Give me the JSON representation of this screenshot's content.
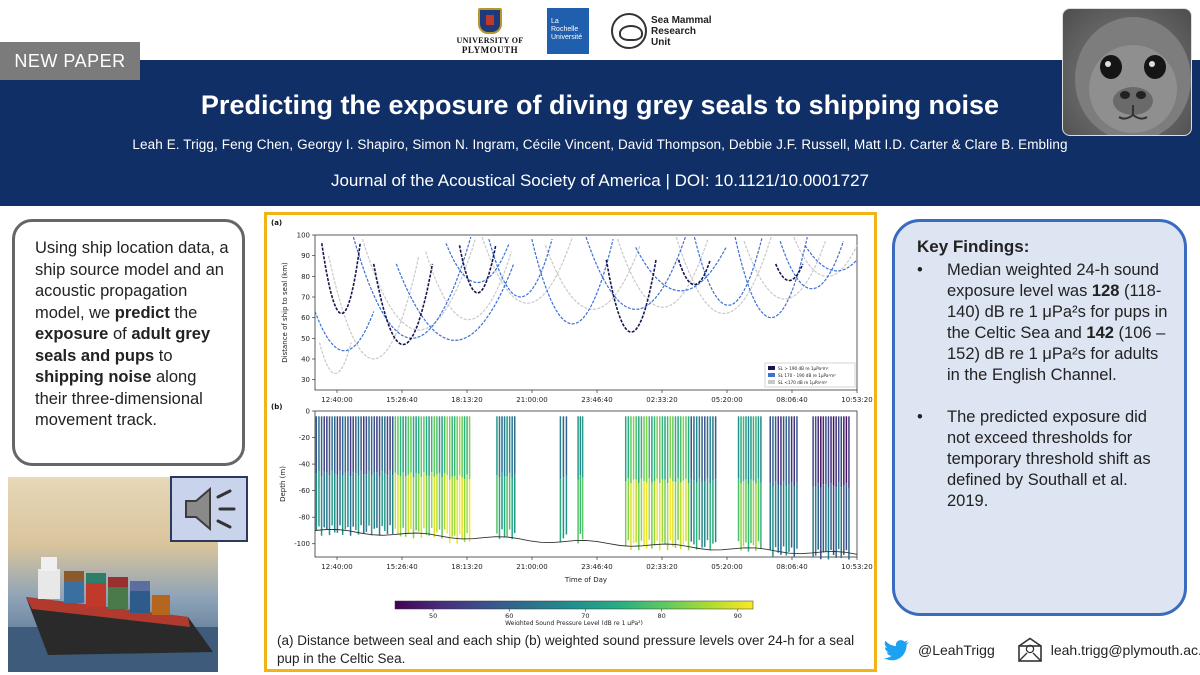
{
  "logos": {
    "plymouth": [
      "UNIVERSITY OF",
      "PLYMOUTH"
    ],
    "larochelle": [
      "La Rochelle",
      "Université"
    ],
    "smru": [
      "Sea Mammal",
      "Research",
      "Unit"
    ]
  },
  "tag": "NEW PAPER",
  "header": {
    "title": "Predicting the exposure of diving grey seals to shipping noise",
    "authors": "Leah E. Trigg, Feng Chen, Georgy I. Shapiro, Simon N. Ingram, Cécile Vincent, David Thompson, Debbie J.F. Russell, Matt I.D. Carter & Clare B. Embling",
    "journal": "Journal of the Acoustical Society of America | DOI: 10.1121/10.0001727"
  },
  "summary": {
    "p1": "Using ship location data, a ship source model and an acoustic propagation model, we ",
    "b1": "predict",
    "p2": " the ",
    "b2": "exposure",
    "p3": " of ",
    "b3": "adult grey seals and pups",
    "p4": " to ",
    "b4": "shipping noise",
    "p5": " along their three-dimensional movement track."
  },
  "figure": {
    "caption": "(a) Distance between seal and each ship (b) weighted sound pressure levels over 24-h for a seal pup in the Celtic Sea."
  },
  "chart_data": [
    {
      "type": "line",
      "panel": "(a)",
      "ylabel": "Distance of ship to seal (km)",
      "xlabel": "",
      "ylim": [
        25,
        100
      ],
      "yticks": [
        30,
        40,
        50,
        60,
        70,
        80,
        90,
        100
      ],
      "xticks": [
        "12:40:00",
        "15:26:40",
        "18:13:20",
        "21:00:00",
        "23:46:40",
        "02:33:20",
        "05:20:00",
        "08:06:40",
        "10:53:20"
      ],
      "legend": [
        "SL > 190 dB re 1μPa²m²",
        "SL 170 - 190 dB re 1μPa²m²",
        "SL <170 dB re 1μPa²m²"
      ],
      "legend_position": "bottom-right",
      "series_colors": [
        "#16154f",
        "#3d6fd6",
        "#c9c9c9"
      ],
      "series": [
        {
          "name": "SL > 190 dB re 1μPa²m²",
          "tracks": [
            [
              [
                0.3,
                96
              ],
              [
                1.2,
                62
              ],
              [
                2.0,
                96
              ]
            ],
            [
              [
                2.6,
                86
              ],
              [
                3.9,
                47
              ],
              [
                5.2,
                86
              ]
            ],
            [
              [
                6.4,
                95
              ],
              [
                7.2,
                72
              ],
              [
                8.0,
                95
              ]
            ],
            [
              [
                12.9,
                88
              ],
              [
                14.0,
                53
              ],
              [
                15.1,
                88
              ]
            ],
            [
              [
                16.1,
                88
              ],
              [
                16.8,
                76
              ],
              [
                17.5,
                88
              ]
            ],
            [
              [
                20.4,
                86
              ],
              [
                21.0,
                78
              ],
              [
                21.6,
                86
              ]
            ]
          ]
        },
        {
          "name": "SL 170 - 190 dB re 1μPa²m²",
          "tracks": [
            [
              [
                0.0,
                63
              ],
              [
                1.3,
                44
              ],
              [
                2.6,
                63
              ]
            ],
            [
              [
                1.7,
                99
              ],
              [
                4.3,
                50
              ],
              [
                6.9,
                99
              ]
            ],
            [
              [
                3.6,
                86
              ],
              [
                6.2,
                49
              ],
              [
                8.8,
                86
              ]
            ],
            [
              [
                5.8,
                96
              ],
              [
                7.2,
                77
              ],
              [
                8.6,
                96
              ]
            ],
            [
              [
                7.7,
                98
              ],
              [
                9.1,
                70
              ],
              [
                10.5,
                98
              ]
            ],
            [
              [
                9.6,
                98
              ],
              [
                11.4,
                57
              ],
              [
                13.2,
                98
              ]
            ],
            [
              [
                12.0,
                99
              ],
              [
                14.2,
                64
              ],
              [
                16.4,
                99
              ]
            ],
            [
              [
                14.2,
                94
              ],
              [
                16.2,
                73
              ],
              [
                18.2,
                94
              ]
            ],
            [
              [
                16.8,
                99
              ],
              [
                18.3,
                66
              ],
              [
                19.8,
                99
              ]
            ],
            [
              [
                18.6,
                99
              ],
              [
                20.2,
                60
              ],
              [
                21.8,
                99
              ]
            ],
            [
              [
                20.6,
                97
              ],
              [
                22.0,
                74
              ],
              [
                23.4,
                97
              ]
            ],
            [
              [
                21.7,
                95
              ],
              [
                22.9,
                83
              ],
              [
                24.0,
                88
              ]
            ]
          ]
        },
        {
          "name": "SL <170 dB re 1μPa²m²",
          "tracks": [
            [
              [
                0.2,
                48
              ],
              [
                0.9,
                33
              ],
              [
                1.6,
                48
              ]
            ],
            [
              [
                0.6,
                90
              ],
              [
                2.6,
                40
              ],
              [
                4.6,
                90
              ]
            ],
            [
              [
                2.1,
                98
              ],
              [
                4.6,
                54
              ],
              [
                7.1,
                98
              ]
            ],
            [
              [
                4.9,
                92
              ],
              [
                6.8,
                59
              ],
              [
                8.7,
                92
              ]
            ],
            [
              [
                7.4,
                99
              ],
              [
                9.4,
                67
              ],
              [
                11.4,
                99
              ]
            ],
            [
              [
                10.2,
                95
              ],
              [
                12.3,
                64
              ],
              [
                14.4,
                95
              ]
            ],
            [
              [
                13.4,
                98
              ],
              [
                15.4,
                65
              ],
              [
                17.4,
                98
              ]
            ],
            [
              [
                16.0,
                99
              ],
              [
                18.1,
                62
              ],
              [
                20.2,
                99
              ]
            ],
            [
              [
                19.0,
                97
              ],
              [
                20.8,
                69
              ],
              [
                22.6,
                97
              ]
            ],
            [
              [
                21.2,
                99
              ],
              [
                22.6,
                80
              ],
              [
                24.0,
                95
              ]
            ]
          ]
        }
      ]
    },
    {
      "type": "heatmap",
      "panel": "(b)",
      "ylabel": "Depth (m)",
      "xlabel": "Time of Day",
      "ylim": [
        -110,
        0
      ],
      "yticks": [
        0,
        -20,
        -40,
        -60,
        -80,
        -100
      ],
      "xticks": [
        "12:40:00",
        "15:26:40",
        "18:13:20",
        "21:00:00",
        "23:46:40",
        "02:33:20",
        "05:20:00",
        "08:06:40",
        "10:53:20"
      ],
      "colorbar": {
        "label": "Weighted Sound Pressure Level (dB re 1 μPa²)",
        "min": 45,
        "max": 92,
        "ticks": [
          50,
          60,
          70,
          80,
          90
        ]
      },
      "dive_blocks": [
        {
          "start": 0.0,
          "end": 3.5,
          "depth": -90,
          "spl": 64
        },
        {
          "start": 3.5,
          "end": 5.8,
          "depth": -92,
          "spl": 82
        },
        {
          "start": 5.8,
          "end": 6.9,
          "depth": -96,
          "spl": 86
        },
        {
          "start": 8.0,
          "end": 8.9,
          "depth": -93,
          "spl": 72
        },
        {
          "start": 10.8,
          "end": 11.2,
          "depth": -96,
          "spl": 70
        },
        {
          "start": 11.6,
          "end": 11.9,
          "depth": -96,
          "spl": 78
        },
        {
          "start": 13.7,
          "end": 16.6,
          "depth": -101,
          "spl": 84
        },
        {
          "start": 16.6,
          "end": 17.8,
          "depth": -101,
          "spl": 68
        },
        {
          "start": 18.7,
          "end": 19.8,
          "depth": -102,
          "spl": 78
        },
        {
          "start": 20.1,
          "end": 21.4,
          "depth": -106,
          "spl": 62
        },
        {
          "start": 22.0,
          "end": 23.7,
          "depth": -108,
          "spl": 58
        }
      ]
    }
  ],
  "findings": {
    "heading": "Key Findings:",
    "item1": {
      "t1": "Median weighted 24-h sound exposure level was ",
      "b1": "128",
      "t2": " (118-140) dB re 1 μPa²s for pups in the Celtic Sea and ",
      "b2": "142",
      "t3": " (106 – 152) dB re 1 μPa²s for adults in the English Channel."
    },
    "item2": "The predicted exposure did not exceed thresholds for temporary threshold shift as defined by Southall et al. 2019."
  },
  "contact": {
    "twitter": "@LeahTrigg",
    "email": "leah.trigg@plymouth.ac.uk"
  },
  "colors": {
    "header_bg": "#102f67",
    "figure_border": "#f2b319",
    "findings_border": "#3a6bbf",
    "findings_bg": "#dde4f2",
    "tag_bg": "#7b7b7b"
  }
}
